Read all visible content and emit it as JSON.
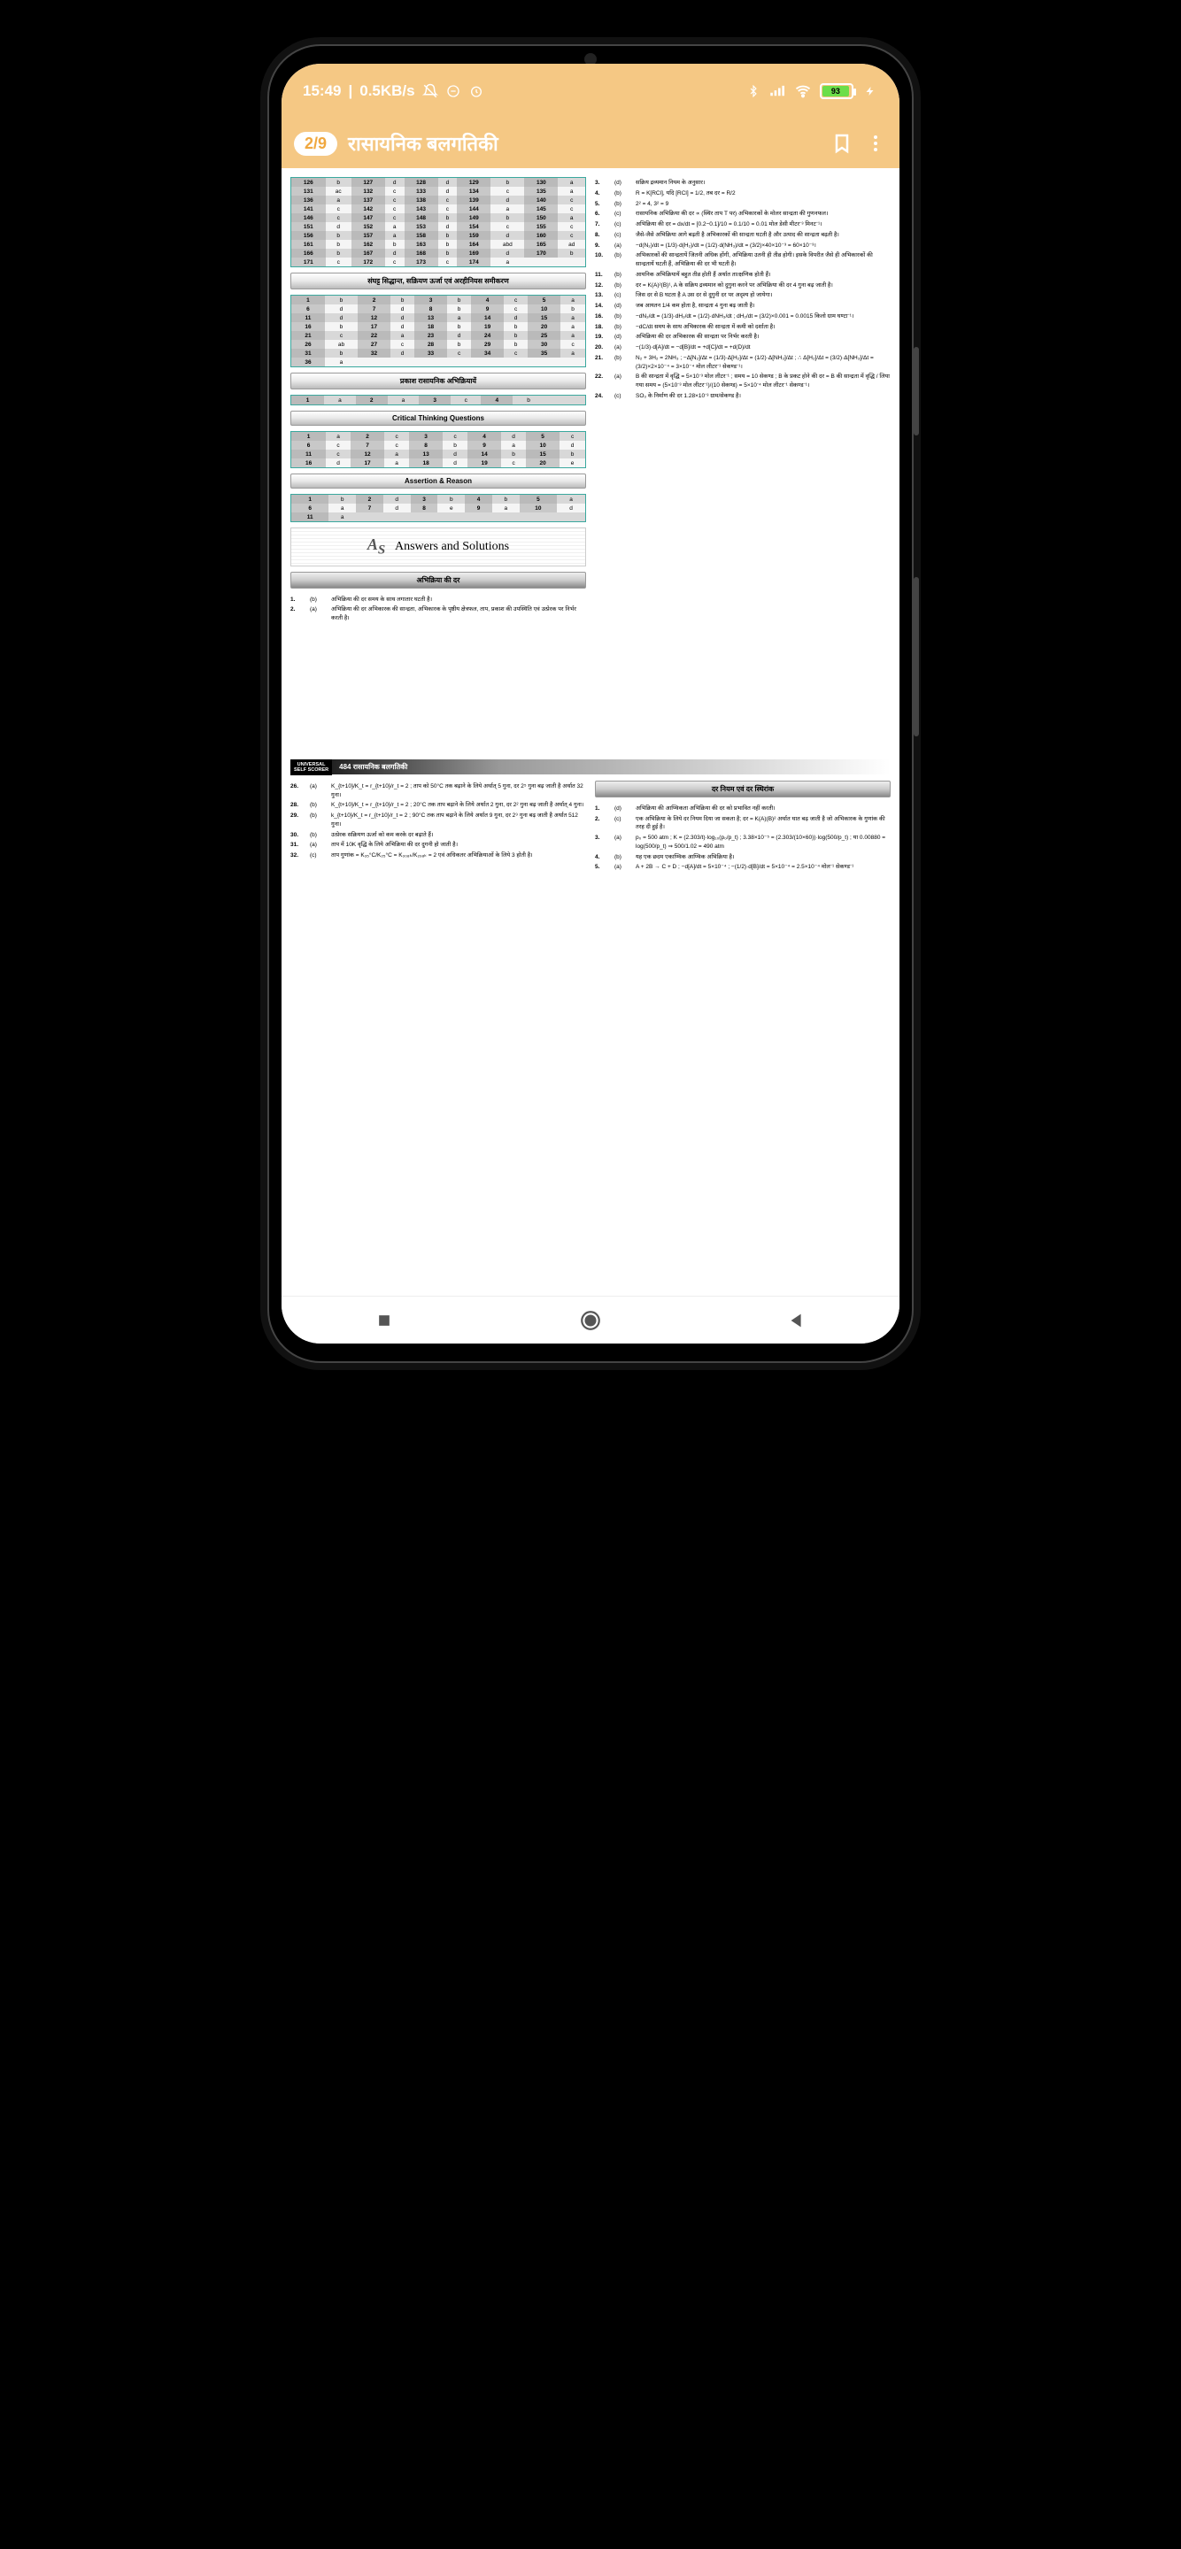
{
  "status": {
    "time": "15:49",
    "data_rate": "0.5KB/s",
    "battery_pct": "93"
  },
  "header": {
    "page_indicator": "2/9",
    "title": "रासायनिक बलगतिकी"
  },
  "tables": {
    "t1": {
      "rows": [
        [
          "126",
          "b",
          "127",
          "d",
          "128",
          "d",
          "129",
          "b",
          "130",
          "a"
        ],
        [
          "131",
          "ac",
          "132",
          "c",
          "133",
          "d",
          "134",
          "c",
          "135",
          "a"
        ],
        [
          "136",
          "a",
          "137",
          "c",
          "138",
          "c",
          "139",
          "d",
          "140",
          "c"
        ],
        [
          "141",
          "c",
          "142",
          "c",
          "143",
          "c",
          "144",
          "a",
          "145",
          "c"
        ],
        [
          "146",
          "c",
          "147",
          "c",
          "148",
          "b",
          "149",
          "b",
          "150",
          "a"
        ],
        [
          "151",
          "d",
          "152",
          "a",
          "153",
          "d",
          "154",
          "c",
          "155",
          "c"
        ],
        [
          "156",
          "b",
          "157",
          "a",
          "158",
          "b",
          "159",
          "d",
          "160",
          "c"
        ],
        [
          "161",
          "b",
          "162",
          "b",
          "163",
          "b",
          "164",
          "abd",
          "165",
          "ad"
        ],
        [
          "166",
          "b",
          "167",
          "d",
          "168",
          "b",
          "169",
          "d",
          "170",
          "b"
        ],
        [
          "171",
          "c",
          "172",
          "c",
          "173",
          "c",
          "174",
          "a",
          "",
          "​"
        ]
      ]
    },
    "t2": {
      "rows": [
        [
          "1",
          "b",
          "2",
          "b",
          "3",
          "b",
          "4",
          "c",
          "5",
          "a"
        ],
        [
          "6",
          "d",
          "7",
          "d",
          "8",
          "b",
          "9",
          "c",
          "10",
          "b"
        ],
        [
          "11",
          "d",
          "12",
          "d",
          "13",
          "a",
          "14",
          "d",
          "15",
          "a"
        ],
        [
          "16",
          "b",
          "17",
          "d",
          "18",
          "b",
          "19",
          "b",
          "20",
          "a"
        ],
        [
          "21",
          "c",
          "22",
          "a",
          "23",
          "d",
          "24",
          "b",
          "25",
          "a"
        ],
        [
          "26",
          "ab",
          "27",
          "c",
          "28",
          "b",
          "29",
          "b",
          "30",
          "c"
        ],
        [
          "31",
          "b",
          "32",
          "d",
          "33",
          "c",
          "34",
          "c",
          "35",
          "a"
        ],
        [
          "36",
          "a",
          "",
          "",
          "",
          "",
          "",
          "",
          "",
          ""
        ]
      ]
    },
    "t3": {
      "rows": [
        [
          "1",
          "a",
          "2",
          "a",
          "3",
          "c",
          "4",
          "b",
          "",
          ""
        ]
      ]
    },
    "t4": {
      "rows": [
        [
          "1",
          "a",
          "2",
          "c",
          "3",
          "c",
          "4",
          "d",
          "5",
          "c"
        ],
        [
          "6",
          "c",
          "7",
          "c",
          "8",
          "b",
          "9",
          "a",
          "10",
          "d"
        ],
        [
          "11",
          "c",
          "12",
          "a",
          "13",
          "d",
          "14",
          "b",
          "15",
          "b"
        ],
        [
          "16",
          "d",
          "17",
          "a",
          "18",
          "d",
          "19",
          "c",
          "20",
          "e"
        ]
      ]
    },
    "t5": {
      "rows": [
        [
          "1",
          "b",
          "2",
          "d",
          "3",
          "b",
          "4",
          "b",
          "5",
          "a"
        ],
        [
          "6",
          "a",
          "7",
          "d",
          "8",
          "e",
          "9",
          "a",
          "10",
          "d"
        ],
        [
          "11",
          "a",
          "",
          "",
          "",
          "",
          "",
          "",
          "",
          ""
        ]
      ]
    }
  },
  "sections": {
    "s1": "संघट्ट सिद्धान्त, सक्रियण ऊर्जा एवं अरहीनियस समीकरण",
    "s2": "प्रकाश रासायनिक अभिक्रियायें",
    "s3": "Critical Thinking Questions",
    "s4": "Assertion & Reason",
    "s5": "Answers and Solutions",
    "s6": "अभिक्रिया की दर",
    "s7": "दर नियम एवं दर स्थिरांक"
  },
  "left_qa": [
    {
      "n": "1.",
      "o": "(b)",
      "t": "अभिक्रिया की दर समय के साथ लगातार घटती है।"
    },
    {
      "n": "2.",
      "o": "(a)",
      "t": "अभिक्रिया की दर अभिकारक की सान्द्रता, अभिकारक के पृष्ठीय क्षेत्रफल, ताप, प्रकाश की उपस्थिति एवं उत्प्रेरक पर निर्भर करती है।"
    }
  ],
  "right_qa": [
    {
      "n": "3.",
      "o": "(d)",
      "t": "सक्रिय द्रव्यमान नियम के अनुसार।"
    },
    {
      "n": "4.",
      "o": "(b)",
      "t": "R = K[RCl], यदि [RCl] = 1/2, तब दर = R/2"
    },
    {
      "n": "5.",
      "o": "(b)",
      "t": "2² = 4, 3² = 9"
    },
    {
      "n": "6.",
      "o": "(c)",
      "t": "रासायनिक अभिक्रिया की दर ∝ (स्थिर ताप T पर) अभिकारकों के मोलर सान्द्रता की गुणनफल।"
    },
    {
      "n": "7.",
      "o": "(c)",
      "t": "अभिक्रिया की दर = dx/dt = [0.2−0.1]/10 = 0.1/10 = 0.01 मोल डेसी मीटर⁻³ मिनट⁻¹।"
    },
    {
      "n": "8.",
      "o": "(c)",
      "t": "जैसे-जैसे अभिक्रिया आगे बढ़ती है अभिकारकों की सान्द्रता घटती है और उत्पाद की सान्द्रता बढ़ती है।"
    },
    {
      "n": "9.",
      "o": "(a)",
      "t": "−d(N₂)/dt = (1/3)·d(H₂)/dt = (1/2)·d(NH₃)/dt = (3/2)×40×10⁻³ = 60×10⁻³।"
    },
    {
      "n": "10.",
      "o": "(b)",
      "t": "अभिकारकों की सान्द्रतायें जितनी अधिक होंगी, अभिक्रिया उतनी ही तीव्र होगी। इसके विपरीत जैसे ही अभिकारकों की सान्द्रतायें घटती हैं, अभिक्रिया की दर भी घटती है।"
    },
    {
      "n": "11.",
      "o": "(b)",
      "t": "आयनिक अभिक्रियायें बहुत तीव्र होती हैं अर्थात तात्क्षणिक होती हैं।"
    },
    {
      "n": "12.",
      "o": "(b)",
      "t": "दर = K(A)²(B)¹, A के सक्रिय द्रव्यमान को दुगुना करने पर अभिक्रिया की दर 4 गुना बढ़ जाती है।"
    },
    {
      "n": "13.",
      "o": "(c)",
      "t": "जिस दर से B घटता है A उस दर से दुगुनी दर पर अदृश्य हो जायेगा।"
    },
    {
      "n": "14.",
      "o": "(d)",
      "t": "जब आयतन 1/4 कम होता है, सान्द्रता 4 गुना बढ़ जाती है।"
    },
    {
      "n": "16.",
      "o": "(b)",
      "t": "−dN₂/dt = (1/3)·dH₂/dt = (1/2)·dNH₃/dt ; dH₂/dt = (3/2)×0.001 = 0.0015 किलो ग्राम घण्टा⁻¹।"
    },
    {
      "n": "18.",
      "o": "(b)",
      "t": "−dC/dt समय के साथ अभिकारक की सान्द्रता में कमी को दर्शाता है।"
    },
    {
      "n": "19.",
      "o": "(d)",
      "t": "अभिक्रिया की दर अभिकारक की सान्द्रता पर निर्भर करती है।"
    },
    {
      "n": "20.",
      "o": "(a)",
      "t": "−(1/3)·d[A]/dt = −d[B]/dt = +d[C]/dt = +d(D)/dt"
    },
    {
      "n": "21.",
      "o": "(b)",
      "t": "N₂ + 3H₂ = 2NH₃ ; −Δ[N₂]/Δt = (1/3)·Δ[H₂]/Δt = (1/2)·Δ[NH₃]/Δt ; ∴ Δ[H₂]/Δt = (3/2)·Δ[NH₃]/Δt = (3/2)×2×10⁻⁴ = 3×10⁻⁴ मोल लीटर⁻¹ सेकण्ड⁻¹।"
    },
    {
      "n": "22.",
      "o": "(a)",
      "t": "B की सान्द्रता में वृद्धि = 5×10⁻³ मोल लीटर⁻¹ ; समय = 10 सेकण्ड ; B के प्रकट होने की दर = B की सान्द्रता में वृद्धि / लिया गया समय = (5×10⁻³ मोल लीटर⁻¹)/(10 सेकण्ड) = 5×10⁻⁴ मोल लीटर⁻¹ सेकण्ड⁻¹।"
    },
    {
      "n": "24.",
      "o": "(c)",
      "t": "SO₃ के निर्माण की दर 1.28×10⁻³ ग्राम/सेकण्ड है।"
    }
  ],
  "page2": {
    "badge_l1": "UNIVERSAL",
    "badge_l2": "SELF SCORER",
    "title": "484 रासायनिक बलगतिकी"
  },
  "page2_left": [
    {
      "n": "26.",
      "o": "(a)",
      "t": "K_{t+10}/K_t = r_{t+10}/r_t = 2 ; ताप को 50°C तक बढ़ाने के लिये अर्थात् 5 गुना, दर 2⁵ गुना बढ़ जाती है अर्थात 32 गुना।"
    },
    {
      "n": "28.",
      "o": "(b)",
      "t": "K_{t+10}/K_t = r_{t+10}/r_t = 2 ; 20°C तक ताप बढ़ाने के लिये अर्थात 2 गुना, दर 2² गुना बढ़ जाती है अर्थात् 4 गुना।"
    },
    {
      "n": "29.",
      "o": "(b)",
      "t": "k_{t+10}/K_t = r_{t+10}/r_t = 2 ; 90°C तक ताप बढ़ाने के लिये अर्थात 9 गुना, दर 2⁹ गुना बढ़ जाती है अर्थात 512 गुना।"
    },
    {
      "n": "30.",
      "o": "(b)",
      "t": "उत्प्रेरक सक्रियण ऊर्जा को कम करके दर बढ़ाते हैं।"
    },
    {
      "n": "31.",
      "o": "(a)",
      "t": "ताप में 10K वृद्धि के लिये अभिक्रिया की दर दुगनी हो जाती है।"
    },
    {
      "n": "32.",
      "o": "(c)",
      "t": "ताप गुणांक = K₃₅°C/K₂₅°C = K₃₀₈ₖ/K₂₉₈ₖ = 2 एवं अधिकतर अभिक्रियाओं के लिये 3 होती है।"
    }
  ],
  "page2_right": [
    {
      "n": "1.",
      "o": "(d)",
      "t": "अभिक्रिया की आण्विकता अभिक्रिया की दर को प्रभावित नहीं करती।"
    },
    {
      "n": "2.",
      "o": "(c)",
      "t": "एक अभिक्रिया के लिये दर नियम दिया जा सकता है; दर = K(A)(B)² अर्थात घात बढ़ जाती है जो अभिकारक के गुणांक की तरह दी हुई है।"
    },
    {
      "n": "3.",
      "o": "(a)",
      "t": "p₀ = 500 atm ; K = (2.303/t)·log₁₀(p₀/p_t) ; 3.38×10⁻⁵ = (2.303/(10×60))·log(500/p_t) ; या 0.00880 = log(500/p_t) ⇒ 500/1.02 = 490 atm"
    },
    {
      "n": "4.",
      "o": "(b)",
      "t": "यह एक छदम एकाण्विक आण्विक अभिक्रिया है।"
    },
    {
      "n": "5.",
      "o": "(a)",
      "t": "A + 2B → C + D ; −d[A]/dt = 5×10⁻⁴ ; −(1/2)·d[B]/dt = 5×10⁻⁴ = 2.5×10⁻⁴ मोल⁻¹ सेकण्ड⁻¹"
    }
  ]
}
